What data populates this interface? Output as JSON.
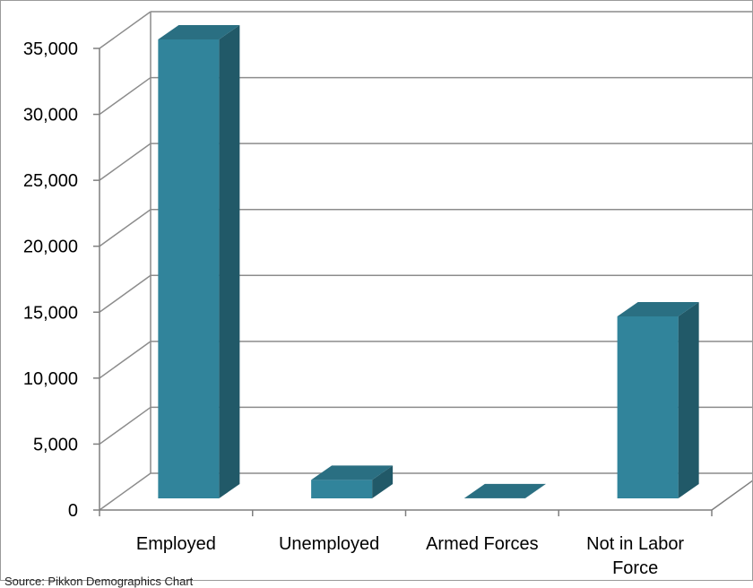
{
  "source_note": "Source: Pikkon Demographics Chart",
  "chart_data": {
    "type": "bar",
    "style": "3d",
    "categories": [
      "Employed",
      "Unemployed",
      "Armed Forces",
      "Not in Labor Force"
    ],
    "values": [
      34800,
      1400,
      10,
      13800
    ],
    "ylim": [
      0,
      35000
    ],
    "yticks": [
      "0",
      "5,000",
      "10,000",
      "15,000",
      "20,000",
      "25,000",
      "30,000",
      "35,000"
    ],
    "ytick_values": [
      0,
      5000,
      10000,
      15000,
      20000,
      25000,
      30000,
      35000
    ],
    "grid": true,
    "legend": "none",
    "title": "",
    "xlabel": "",
    "ylabel": "",
    "colors": {
      "bar_front": "#31849b",
      "bar_side": "#215968",
      "bar_top": "#2a6f82",
      "grid": "#8c8c8c",
      "axis": "#7f7f7f"
    }
  }
}
